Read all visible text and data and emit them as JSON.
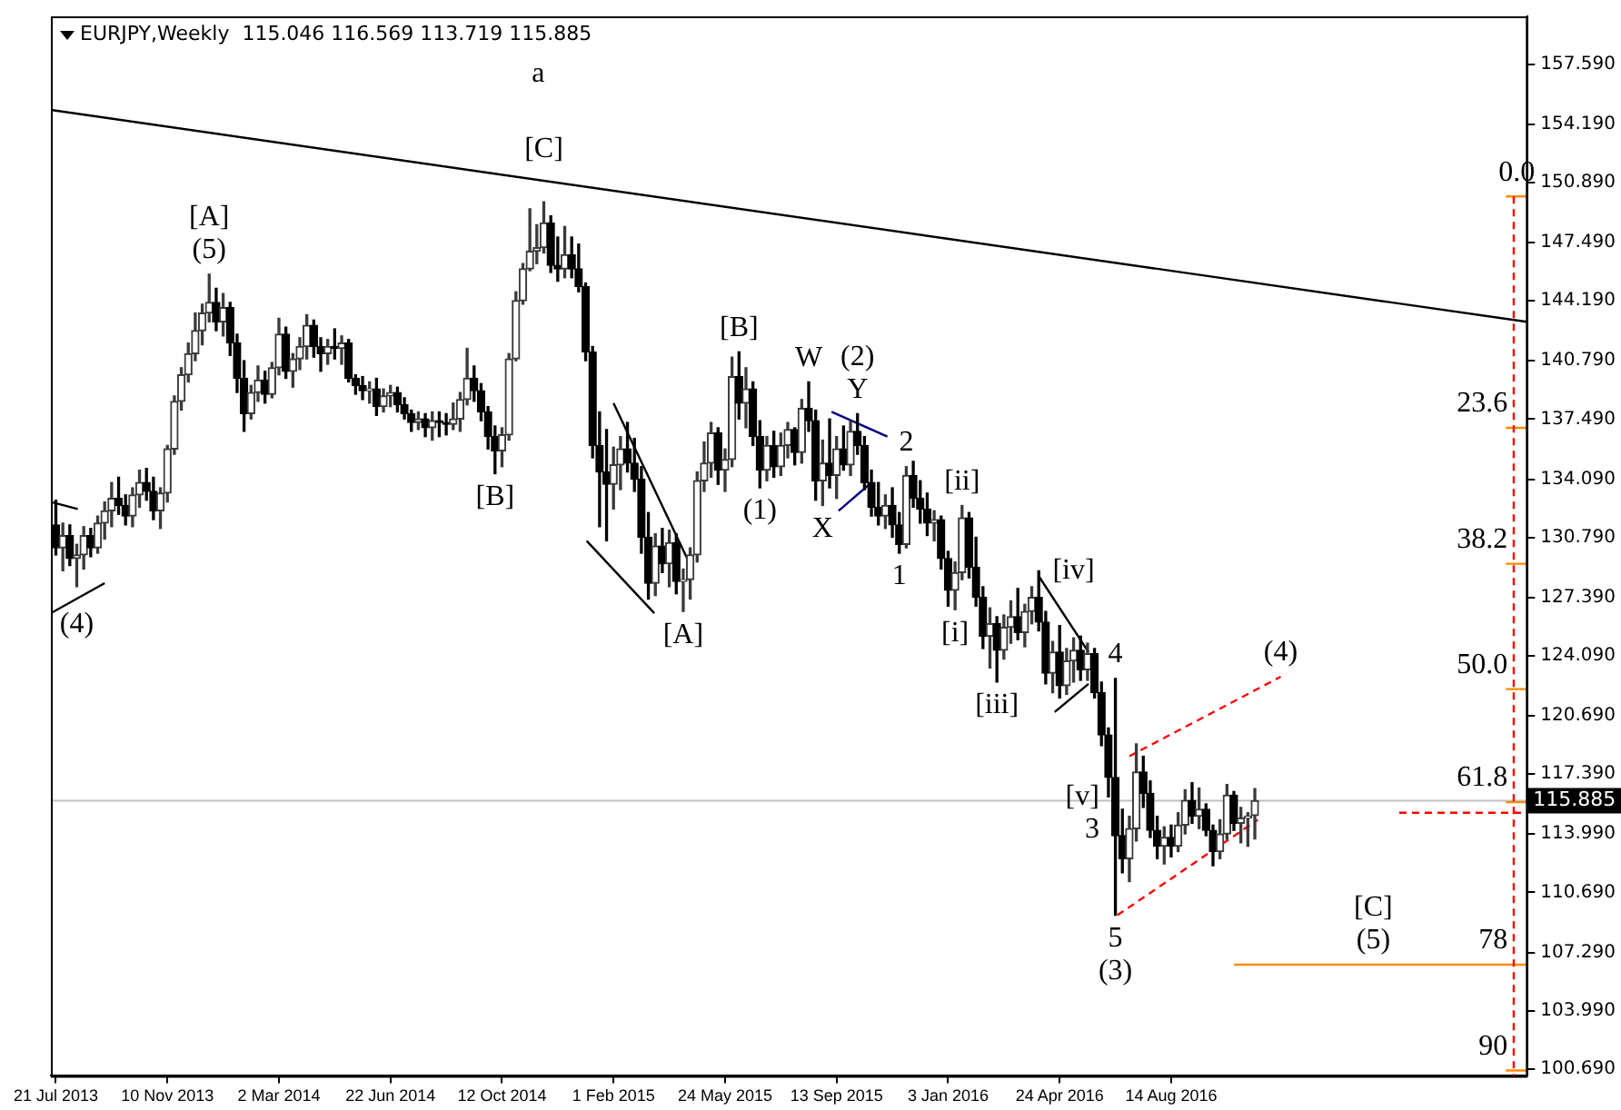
{
  "chart_data": {
    "type": "candlestick",
    "title": "EURJPY,Weekly  115.046 116.569 113.719 115.885",
    "x": [
      "2013-07-21",
      "2013-07-28",
      "2013-08-04",
      "2013-08-11",
      "2013-08-18",
      "2013-08-25",
      "2013-09-01",
      "2013-09-08",
      "2013-09-15",
      "2013-09-22",
      "2013-09-29",
      "2013-10-06",
      "2013-10-13",
      "2013-10-20",
      "2013-10-27",
      "2013-11-03",
      "2013-11-10",
      "2013-11-17",
      "2013-11-24",
      "2013-12-01",
      "2013-12-08",
      "2013-12-15",
      "2013-12-22",
      "2013-12-29",
      "2014-01-05",
      "2014-01-12",
      "2014-01-19",
      "2014-01-26",
      "2014-02-02",
      "2014-02-09",
      "2014-02-16",
      "2014-02-23",
      "2014-03-02",
      "2014-03-09",
      "2014-03-16",
      "2014-03-23",
      "2014-03-30",
      "2014-04-06",
      "2014-04-13",
      "2014-04-20",
      "2014-04-27",
      "2014-05-04",
      "2014-05-11",
      "2014-05-18",
      "2014-05-25",
      "2014-06-01",
      "2014-06-08",
      "2014-06-15",
      "2014-06-22",
      "2014-06-29",
      "2014-07-06",
      "2014-07-13",
      "2014-07-20",
      "2014-07-27",
      "2014-08-03",
      "2014-08-10",
      "2014-08-17",
      "2014-08-24",
      "2014-08-31",
      "2014-09-07",
      "2014-09-14",
      "2014-09-21",
      "2014-09-28",
      "2014-10-05",
      "2014-10-12",
      "2014-10-19",
      "2014-10-26",
      "2014-11-02",
      "2014-11-09",
      "2014-11-16",
      "2014-11-23",
      "2014-11-30",
      "2014-12-07",
      "2014-12-14",
      "2014-12-21",
      "2014-12-28",
      "2015-01-04",
      "2015-01-11",
      "2015-01-18",
      "2015-01-25",
      "2015-02-01",
      "2015-02-08",
      "2015-02-15",
      "2015-02-22",
      "2015-03-01",
      "2015-03-08",
      "2015-03-15",
      "2015-03-22",
      "2015-03-29",
      "2015-04-05",
      "2015-04-12",
      "2015-04-19",
      "2015-04-26",
      "2015-05-03",
      "2015-05-10",
      "2015-05-17",
      "2015-05-24",
      "2015-05-31",
      "2015-06-07",
      "2015-06-14",
      "2015-06-21",
      "2015-06-28",
      "2015-07-05",
      "2015-07-12",
      "2015-07-19",
      "2015-07-26",
      "2015-08-02",
      "2015-08-09",
      "2015-08-16",
      "2015-08-23",
      "2015-08-30",
      "2015-09-06",
      "2015-09-13",
      "2015-09-20",
      "2015-09-27",
      "2015-10-04",
      "2015-10-11",
      "2015-10-18",
      "2015-10-25",
      "2015-11-01",
      "2015-11-08",
      "2015-11-15",
      "2015-11-22",
      "2015-11-29",
      "2015-12-06",
      "2015-12-13",
      "2015-12-20",
      "2015-12-27",
      "2016-01-03",
      "2016-01-10",
      "2016-01-17",
      "2016-01-24",
      "2016-01-31",
      "2016-02-07",
      "2016-02-14",
      "2016-02-21",
      "2016-02-28",
      "2016-03-06",
      "2016-03-13",
      "2016-03-20",
      "2016-03-27",
      "2016-04-03",
      "2016-04-10",
      "2016-04-17",
      "2016-04-24",
      "2016-05-01",
      "2016-05-08",
      "2016-05-15",
      "2016-05-22",
      "2016-05-29",
      "2016-06-05",
      "2016-06-12",
      "2016-06-19",
      "2016-06-26",
      "2016-07-03",
      "2016-07-10",
      "2016-07-17",
      "2016-07-24",
      "2016-07-31",
      "2016-08-07",
      "2016-08-14",
      "2016-08-21",
      "2016-08-28",
      "2016-09-04",
      "2016-09-11",
      "2016-09-18",
      "2016-09-25",
      "2016-10-02",
      "2016-10-09",
      "2016-10-16",
      "2016-10-23",
      "2016-10-30",
      "2016-11-06"
    ],
    "ohlc": [
      [
        131.5,
        132.9,
        129.8,
        130.2
      ],
      [
        130.2,
        131.6,
        128.9,
        130.9
      ],
      [
        130.9,
        131.5,
        129.2,
        129.6
      ],
      [
        129.6,
        130.4,
        128.0,
        129.8
      ],
      [
        129.8,
        131.4,
        129.0,
        130.9
      ],
      [
        130.9,
        131.3,
        129.7,
        130.2
      ],
      [
        130.2,
        132.0,
        129.9,
        131.6
      ],
      [
        131.6,
        132.8,
        130.7,
        132.3
      ],
      [
        132.3,
        133.9,
        131.4,
        133.0
      ],
      [
        133.0,
        134.2,
        132.1,
        132.6
      ],
      [
        132.6,
        133.2,
        131.5,
        132.0
      ],
      [
        132.0,
        133.6,
        131.4,
        133.2
      ],
      [
        133.2,
        134.6,
        132.5,
        133.9
      ],
      [
        133.9,
        134.7,
        132.9,
        133.4
      ],
      [
        133.4,
        134.2,
        131.8,
        132.3
      ],
      [
        132.3,
        133.6,
        131.3,
        133.3
      ],
      [
        133.3,
        136.0,
        132.8,
        135.8
      ],
      [
        135.8,
        138.8,
        135.5,
        138.5
      ],
      [
        138.5,
        140.4,
        138.0,
        140.0
      ],
      [
        140.0,
        141.8,
        139.6,
        141.2
      ],
      [
        141.2,
        143.5,
        140.8,
        142.5
      ],
      [
        142.5,
        144.0,
        141.7,
        143.5
      ],
      [
        143.5,
        145.7,
        143.0,
        144.1
      ],
      [
        144.1,
        144.9,
        142.5,
        143.0
      ],
      [
        143.0,
        144.6,
        142.2,
        143.8
      ],
      [
        143.8,
        144.1,
        141.1,
        141.8
      ],
      [
        141.8,
        142.3,
        139.0,
        139.8
      ],
      [
        139.8,
        140.8,
        136.8,
        137.8
      ],
      [
        137.8,
        139.4,
        137.5,
        139.0
      ],
      [
        139.0,
        140.5,
        138.5,
        139.7
      ],
      [
        139.7,
        140.2,
        138.4,
        138.9
      ],
      [
        138.9,
        140.7,
        138.7,
        140.4
      ],
      [
        140.4,
        143.2,
        140.0,
        142.3
      ],
      [
        142.3,
        142.7,
        139.8,
        140.2
      ],
      [
        140.2,
        141.2,
        139.3,
        140.9
      ],
      [
        140.9,
        142.1,
        140.3,
        141.6
      ],
      [
        141.6,
        143.4,
        140.9,
        142.8
      ],
      [
        142.8,
        143.1,
        141.0,
        141.6
      ],
      [
        141.6,
        142.1,
        140.2,
        141.2
      ],
      [
        141.2,
        142.0,
        140.6,
        141.6
      ],
      [
        141.6,
        142.6,
        140.9,
        141.5
      ],
      [
        141.5,
        142.2,
        140.6,
        141.8
      ],
      [
        141.8,
        142.0,
        139.6,
        139.8
      ],
      [
        139.8,
        140.0,
        138.9,
        139.4
      ],
      [
        139.4,
        139.9,
        138.6,
        139.1
      ],
      [
        139.1,
        139.6,
        138.4,
        139.2
      ],
      [
        139.2,
        139.8,
        137.7,
        138.2
      ],
      [
        138.2,
        139.2,
        137.9,
        138.8
      ],
      [
        138.8,
        139.4,
        138.2,
        139.0
      ],
      [
        139.0,
        139.3,
        137.9,
        138.3
      ],
      [
        138.3,
        138.7,
        137.5,
        137.8
      ],
      [
        137.8,
        138.0,
        136.8,
        137.3
      ],
      [
        137.3,
        137.9,
        136.9,
        137.5
      ],
      [
        137.5,
        137.8,
        136.5,
        137.0
      ],
      [
        137.0,
        137.9,
        136.3,
        137.4
      ],
      [
        137.4,
        137.9,
        136.5,
        137.3
      ],
      [
        137.3,
        137.8,
        136.6,
        137.2
      ],
      [
        137.2,
        138.4,
        136.9,
        137.5
      ],
      [
        137.5,
        139.0,
        136.8,
        138.6
      ],
      [
        138.6,
        141.5,
        138.3,
        139.8
      ],
      [
        139.8,
        140.5,
        138.5,
        139.1
      ],
      [
        139.1,
        139.5,
        137.4,
        137.9
      ],
      [
        137.9,
        138.2,
        135.8,
        136.5
      ],
      [
        136.5,
        137.1,
        134.4,
        135.7
      ],
      [
        135.7,
        137.0,
        134.8,
        136.6
      ],
      [
        136.6,
        141.2,
        136.3,
        140.9
      ],
      [
        140.9,
        144.7,
        140.8,
        144.2
      ],
      [
        144.2,
        146.3,
        144.0,
        146.0
      ],
      [
        146.0,
        149.4,
        145.9,
        147.0
      ],
      [
        147.0,
        148.5,
        146.3,
        147.2
      ],
      [
        147.2,
        149.8,
        146.9,
        148.6
      ],
      [
        148.6,
        149.0,
        145.8,
        146.2
      ],
      [
        146.2,
        147.8,
        145.3,
        146.0
      ],
      [
        146.0,
        148.4,
        145.5,
        146.8
      ],
      [
        146.8,
        147.8,
        145.5,
        146.0
      ],
      [
        146.0,
        147.4,
        144.7,
        145.0
      ],
      [
        145.0,
        145.2,
        140.8,
        141.3
      ],
      [
        141.3,
        141.6,
        135.3,
        136.0
      ],
      [
        136.0,
        137.9,
        131.4,
        134.5
      ],
      [
        134.5,
        136.9,
        130.6,
        133.8
      ],
      [
        133.8,
        135.9,
        132.4,
        134.9
      ],
      [
        134.9,
        136.5,
        133.5,
        135.8
      ],
      [
        135.8,
        137.3,
        134.5,
        135.0
      ],
      [
        135.0,
        136.4,
        133.4,
        134.1
      ],
      [
        134.1,
        134.8,
        129.9,
        130.8
      ],
      [
        130.8,
        132.2,
        127.3,
        128.2
      ],
      [
        128.2,
        131.0,
        127.5,
        130.3
      ],
      [
        130.3,
        131.3,
        128.8,
        129.3
      ],
      [
        129.3,
        131.2,
        128.0,
        130.5
      ],
      [
        130.5,
        131.0,
        127.6,
        128.3
      ],
      [
        128.3,
        129.0,
        126.6,
        128.4
      ],
      [
        128.4,
        130.2,
        127.3,
        129.8
      ],
      [
        129.8,
        134.5,
        129.4,
        134.0
      ],
      [
        134.0,
        136.2,
        133.4,
        135.0
      ],
      [
        135.0,
        137.3,
        134.2,
        136.7
      ],
      [
        136.7,
        137.0,
        133.8,
        134.6
      ],
      [
        134.6,
        135.8,
        133.4,
        135.2
      ],
      [
        135.2,
        141.0,
        134.8,
        139.9
      ],
      [
        139.9,
        141.3,
        137.5,
        138.4
      ],
      [
        138.4,
        140.4,
        137.0,
        139.2
      ],
      [
        139.2,
        139.6,
        136.0,
        136.5
      ],
      [
        136.5,
        137.4,
        133.6,
        134.6
      ],
      [
        134.6,
        136.5,
        134.0,
        136.0
      ],
      [
        136.0,
        136.8,
        134.2,
        134.8
      ],
      [
        134.8,
        136.7,
        134.3,
        136.0
      ],
      [
        136.0,
        137.3,
        135.3,
        136.9
      ],
      [
        136.9,
        137.0,
        134.9,
        135.6
      ],
      [
        135.6,
        138.6,
        135.0,
        138.1
      ],
      [
        138.1,
        139.6,
        136.8,
        137.4
      ],
      [
        137.4,
        138.0,
        132.9,
        134.0
      ],
      [
        134.0,
        136.3,
        132.6,
        135.0
      ],
      [
        135.0,
        137.5,
        133.6,
        134.3
      ],
      [
        134.3,
        136.5,
        133.0,
        135.8
      ],
      [
        135.8,
        137.1,
        134.6,
        134.9
      ],
      [
        134.9,
        137.4,
        134.3,
        136.8
      ],
      [
        136.8,
        137.8,
        135.5,
        136.0
      ],
      [
        136.0,
        136.5,
        133.5,
        133.9
      ],
      [
        133.9,
        134.6,
        132.0,
        132.5
      ],
      [
        132.5,
        133.9,
        131.5,
        132.0
      ],
      [
        132.0,
        133.2,
        131.3,
        132.6
      ],
      [
        132.6,
        133.6,
        130.8,
        131.5
      ],
      [
        131.5,
        132.2,
        129.9,
        130.4
      ],
      [
        130.4,
        134.8,
        130.2,
        134.3
      ],
      [
        134.3,
        135.1,
        132.5,
        133.0
      ],
      [
        133.0,
        134.0,
        131.6,
        132.4
      ],
      [
        132.4,
        133.3,
        130.9,
        131.6
      ],
      [
        131.6,
        132.3,
        130.6,
        131.8
      ],
      [
        131.8,
        132.0,
        129.0,
        129.6
      ],
      [
        129.6,
        130.0,
        126.9,
        127.8
      ],
      [
        127.8,
        129.4,
        126.7,
        128.8
      ],
      [
        128.8,
        132.6,
        128.4,
        131.9
      ],
      [
        131.9,
        132.2,
        128.5,
        129.1
      ],
      [
        129.1,
        130.8,
        126.9,
        127.4
      ],
      [
        127.4,
        128.0,
        124.5,
        125.2
      ],
      [
        125.2,
        126.8,
        123.4,
        125.9
      ],
      [
        125.9,
        126.3,
        122.6,
        124.4
      ],
      [
        124.4,
        126.4,
        123.9,
        125.7
      ],
      [
        125.7,
        127.2,
        124.8,
        126.3
      ],
      [
        126.3,
        127.9,
        125.0,
        125.4
      ],
      [
        125.4,
        127.0,
        124.6,
        126.6
      ],
      [
        126.6,
        128.0,
        125.9,
        127.4
      ],
      [
        127.4,
        128.9,
        125.5,
        126.0
      ],
      [
        126.0,
        126.6,
        122.5,
        123.1
      ],
      [
        123.1,
        124.9,
        122.0,
        124.3
      ],
      [
        124.3,
        125.8,
        121.7,
        122.4
      ],
      [
        122.4,
        124.5,
        121.9,
        123.8
      ],
      [
        123.8,
        125.1,
        122.6,
        124.4
      ],
      [
        124.4,
        125.2,
        122.7,
        123.3
      ],
      [
        123.3,
        124.8,
        122.7,
        124.2
      ],
      [
        124.2,
        124.5,
        121.7,
        122.0
      ],
      [
        122.0,
        122.6,
        119.0,
        119.6
      ],
      [
        119.6,
        120.0,
        116.1,
        117.2
      ],
      [
        117.2,
        122.8,
        109.4,
        113.9
      ],
      [
        113.9,
        115.4,
        111.8,
        112.6
      ],
      [
        112.6,
        115.0,
        111.3,
        114.3
      ],
      [
        114.3,
        119.1,
        113.6,
        117.5
      ],
      [
        117.5,
        118.4,
        115.5,
        116.3
      ],
      [
        116.3,
        117.0,
        113.8,
        114.2
      ],
      [
        114.2,
        115.0,
        112.6,
        113.3
      ],
      [
        113.3,
        114.4,
        112.3,
        113.8
      ],
      [
        113.8,
        114.5,
        112.7,
        113.3
      ],
      [
        113.3,
        115.2,
        113.0,
        114.5
      ],
      [
        114.5,
        116.5,
        114.0,
        115.9
      ],
      [
        115.9,
        116.9,
        114.6,
        115.0
      ],
      [
        115.0,
        116.6,
        114.3,
        115.4
      ],
      [
        115.4,
        115.7,
        113.9,
        114.2
      ],
      [
        114.2,
        114.5,
        112.2,
        113.0
      ],
      [
        113.0,
        114.8,
        112.6,
        114.0
      ],
      [
        114.0,
        116.8,
        113.7,
        116.2
      ],
      [
        116.2,
        116.4,
        114.2,
        114.6
      ],
      [
        114.6,
        115.5,
        113.5,
        114.9
      ],
      [
        114.9,
        115.2,
        113.3,
        115.0
      ],
      [
        115.046,
        116.569,
        113.719,
        115.885
      ]
    ],
    "series": [
      {
        "type": "line",
        "color": "#000000",
        "line_style": "solid",
        "x": [
          "2013-07-16",
          "2017-08-06"
        ],
        "values": [
          155.0,
          143.0
        ]
      },
      {
        "type": "line",
        "color": "#000000",
        "line_style": "solid",
        "x": [
          "2013-07-16",
          "2013-08-12"
        ],
        "values": [
          132.8,
          132.4
        ]
      },
      {
        "type": "line",
        "color": "#000000",
        "line_style": "solid",
        "x": [
          "2013-07-16",
          "2013-09-08"
        ],
        "values": [
          126.5,
          128.2
        ]
      },
      {
        "type": "line",
        "color": "#000000",
        "line_style": "solid",
        "x": [
          "2015-02-01",
          "2015-04-21"
        ],
        "values": [
          138.4,
          129.0
        ]
      },
      {
        "type": "line",
        "color": "#000000",
        "line_style": "solid",
        "x": [
          "2015-01-05",
          "2015-03-14"
        ],
        "values": [
          130.6,
          126.5
        ]
      },
      {
        "type": "line",
        "color": "#000080",
        "line_style": "solid",
        "x": [
          "2015-09-08",
          "2015-11-03"
        ],
        "values": [
          137.9,
          136.5
        ]
      },
      {
        "type": "line",
        "color": "#000080",
        "line_style": "solid",
        "x": [
          "2015-09-15",
          "2015-10-18"
        ],
        "values": [
          132.3,
          133.9
        ]
      },
      {
        "type": "line",
        "color": "#000000",
        "line_style": "solid",
        "x": [
          "2016-04-03",
          "2016-05-23"
        ],
        "values": [
          128.6,
          124.3
        ]
      },
      {
        "type": "line",
        "color": "#000000",
        "line_style": "solid",
        "x": [
          "2016-04-19",
          "2016-05-23"
        ],
        "values": [
          120.9,
          122.5
        ]
      },
      {
        "type": "line",
        "color": "#ff0000",
        "line_style": "dashed",
        "x": [
          "2016-07-03",
          "2016-12-02"
        ],
        "values": [
          118.4,
          122.9
        ]
      },
      {
        "type": "line",
        "color": "#ff0000",
        "line_style": "dashed",
        "x": [
          "2016-06-21",
          "2016-11-09"
        ],
        "values": [
          109.4,
          114.8
        ]
      },
      {
        "type": "line",
        "color": "#ff0000",
        "line_style": "dashed",
        "x": [
          "2017-07-24",
          "2017-07-24"
        ],
        "values": [
          150.1,
          100.3
        ]
      },
      {
        "type": "line",
        "color": "#ff0000",
        "line_style": "dashed",
        "x": [
          "2017-03-31",
          "2017-08-04"
        ],
        "values": [
          115.2,
          115.2
        ]
      },
      {
        "type": "line",
        "color": "#ff8c00",
        "line_style": "solid",
        "x": [
          "2016-10-16",
          "2017-08-06"
        ],
        "values": [
          106.6,
          106.6
        ]
      },
      {
        "type": "line",
        "color": "#ff8c00",
        "line_style": "solid",
        "x": [
          "2017-07-16",
          "2017-08-06"
        ],
        "values": [
          150.1,
          150.1
        ]
      },
      {
        "type": "line",
        "color": "#ff8c00",
        "line_style": "solid",
        "x": [
          "2017-07-16",
          "2017-08-06"
        ],
        "values": [
          137.0,
          137.0
        ]
      },
      {
        "type": "line",
        "color": "#ff8c00",
        "line_style": "solid",
        "x": [
          "2017-07-16",
          "2017-08-06"
        ],
        "values": [
          129.3,
          129.3
        ]
      },
      {
        "type": "line",
        "color": "#ff8c00",
        "line_style": "solid",
        "x": [
          "2017-07-16",
          "2017-08-06"
        ],
        "values": [
          122.2,
          122.2
        ]
      },
      {
        "type": "line",
        "color": "#ff8c00",
        "line_style": "solid",
        "x": [
          "2017-07-16",
          "2017-08-06"
        ],
        "values": [
          115.8,
          115.8
        ]
      },
      {
        "type": "line",
        "color": "#ff8c00",
        "line_style": "solid",
        "x": [
          "2017-07-16",
          "2017-08-06"
        ],
        "values": [
          100.6,
          100.6
        ]
      }
    ],
    "ref_lines": [
      {
        "axis": "y",
        "value": 115.885,
        "label": "115.885",
        "color": "#c0c0c0"
      }
    ],
    "annotations": [
      "a",
      {
        "text": "(5)",
        "x": "2013-12-22",
        "y": 145.7
      },
      {
        "text": "[A]",
        "x": "2013-12-22",
        "y": 145.7
      },
      {
        "text": "[C]",
        "x": "2014-11-23",
        "y": 149.8
      },
      {
        "text": "[B]",
        "x": "2014-10-05",
        "y": 134.4
      },
      {
        "text": "(4)",
        "x": "2013-08-11",
        "y": 128.0
      },
      {
        "text": "[A]",
        "x": "2015-04-12",
        "y": 126.6
      },
      {
        "text": "[B]",
        "x": "2015-06-07",
        "y": 141.3
      },
      {
        "text": "(1)",
        "x": "2015-06-28",
        "y": 133.6
      },
      {
        "text": "W",
        "x": "2015-08-16",
        "y": 139.6
      },
      {
        "text": "X",
        "x": "2015-08-30",
        "y": 132.6
      },
      {
        "text": "Y",
        "x": "2015-10-04",
        "y": 137.8
      },
      {
        "text": "(2)",
        "x": "2015-10-04",
        "y": 137.8
      },
      {
        "text": "2",
        "x": "2015-11-22",
        "y": 134.8
      },
      {
        "text": "1",
        "x": "2015-11-15",
        "y": 129.9
      },
      {
        "text": "[i]",
        "x": "2016-01-10",
        "y": 126.7
      },
      {
        "text": "[ii]",
        "x": "2016-01-17",
        "y": 132.6
      },
      {
        "text": "[iii]",
        "x": "2016-02-21",
        "y": 122.6
      },
      {
        "text": "[iv]",
        "x": "2016-05-08",
        "y": 125.1
      },
      {
        "text": "4",
        "x": "2016-06-19",
        "y": 122.8
      },
      {
        "text": "[v]",
        "x": "2016-06-12",
        "y": 116.1
      },
      {
        "text": "3",
        "x": "2016-06-12",
        "y": 116.1
      },
      {
        "text": "5",
        "x": "2016-06-19",
        "y": 109.4
      },
      {
        "text": "(3)",
        "x": "2016-06-19",
        "y": 109.4
      },
      {
        "text": "(4)",
        "x": "2016-12-02",
        "y": 122.9
      },
      {
        "text": "(5)",
        "x": "2017-03-05",
        "y": 106.6
      },
      {
        "text": "[C]",
        "x": "2017-03-05",
        "y": 106.6
      },
      {
        "text": "0.0",
        "x": "2017-07-27",
        "y": 150.1
      },
      {
        "text": "23.6",
        "x": "2017-07-27",
        "y": 137.0
      },
      {
        "text": "38.2",
        "x": "2017-07-27",
        "y": 129.3
      },
      {
        "text": "50.0",
        "x": "2017-07-27",
        "y": 122.2
      },
      {
        "text": "61.8",
        "x": "2017-07-27",
        "y": 115.8
      },
      {
        "text": "78",
        "x": "2017-07-27",
        "y": 106.6
      },
      {
        "text": "90",
        "x": "2017-07-27",
        "y": 100.6
      }
    ],
    "xlim": [
      "2013-07-16",
      "2017-08-07"
    ],
    "xticks": [
      {
        "value": "2013-07-21",
        "label": "21 Jul 2013"
      },
      {
        "value": "2013-11-10",
        "label": "10 Nov 2013"
      },
      {
        "value": "2014-03-02",
        "label": "2 Mar 2014"
      },
      {
        "value": "2014-06-22",
        "label": "22 Jun 2014"
      },
      {
        "value": "2014-10-12",
        "label": "12 Oct 2014"
      },
      {
        "value": "2015-02-01",
        "label": "1 Feb 2015"
      },
      {
        "value": "2015-05-24",
        "label": "24 May 2015"
      },
      {
        "value": "2015-09-13",
        "label": "13 Sep 2015"
      },
      {
        "value": "2016-01-03",
        "label": "3 Jan 2016"
      },
      {
        "value": "2016-04-24",
        "label": "24 Apr 2016"
      },
      {
        "value": "2016-08-14",
        "label": "14 Aug 2016"
      }
    ],
    "ylim": [
      100.3,
      160.3
    ],
    "yticks": [
      {
        "value": 100.69,
        "label": "100.690"
      },
      {
        "value": 103.99,
        "label": "103.990"
      },
      {
        "value": 107.29,
        "label": "107.290"
      },
      {
        "value": 110.69,
        "label": "110.690"
      },
      {
        "value": 113.99,
        "label": "113.990"
      },
      {
        "value": 117.39,
        "label": "117.390"
      },
      {
        "value": 120.69,
        "label": "120.690"
      },
      {
        "value": 124.09,
        "label": "124.090"
      },
      {
        "value": 127.39,
        "label": "127.390"
      },
      {
        "value": 130.79,
        "label": "130.790"
      },
      {
        "value": 134.09,
        "label": "134.090"
      },
      {
        "value": 137.49,
        "label": "137.490"
      },
      {
        "value": 140.79,
        "label": "140.790"
      },
      {
        "value": 144.19,
        "label": "144.190"
      },
      {
        "value": 147.49,
        "label": "147.490"
      },
      {
        "value": 150.89,
        "label": "150.890"
      },
      {
        "value": 154.19,
        "label": "154.190"
      },
      {
        "value": 157.59,
        "label": "157.590"
      }
    ],
    "grid": false,
    "legend": false
  }
}
